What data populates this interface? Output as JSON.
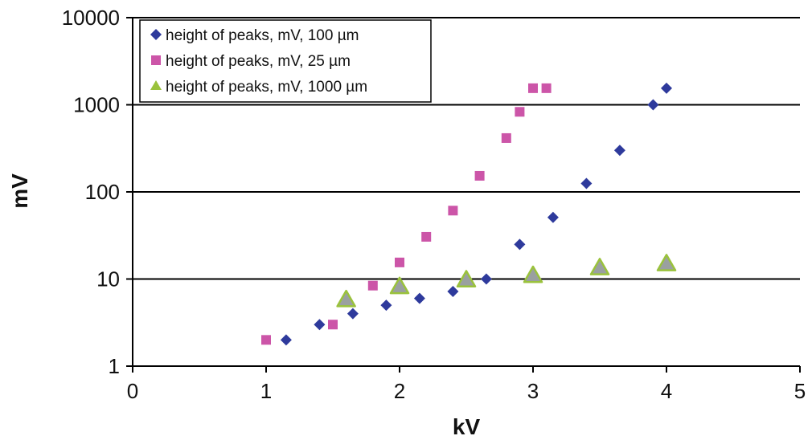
{
  "chart_data": {
    "type": "scatter",
    "title": "",
    "xlabel": "kV",
    "ylabel": "mV",
    "xlim": [
      0,
      5
    ],
    "ylim": [
      1,
      10000
    ],
    "yscale": "log",
    "grid": "horizontal",
    "legend_position": "top-left",
    "x_ticks": [
      "0",
      "1",
      "2",
      "3",
      "4",
      "5"
    ],
    "y_ticks": [
      "1",
      "10",
      "100",
      "1000",
      "10000"
    ],
    "series": [
      {
        "name": "height of peaks, mV, 100 µm",
        "marker": "diamond",
        "color": "#2e3a9c",
        "points": [
          {
            "x": 1.15,
            "y": 2
          },
          {
            "x": 1.4,
            "y": 3
          },
          {
            "x": 1.65,
            "y": 4
          },
          {
            "x": 1.9,
            "y": 5
          },
          {
            "x": 2.15,
            "y": 6
          },
          {
            "x": 2.4,
            "y": 7.2
          },
          {
            "x": 2.65,
            "y": 10
          },
          {
            "x": 2.9,
            "y": 25
          },
          {
            "x": 3.15,
            "y": 51
          },
          {
            "x": 3.4,
            "y": 125
          },
          {
            "x": 3.65,
            "y": 300
          },
          {
            "x": 3.9,
            "y": 1000
          },
          {
            "x": 4.0,
            "y": 1550
          }
        ]
      },
      {
        "name": "height of peaks, mV, 25 µm",
        "marker": "square",
        "color": "#cc55a8",
        "points": [
          {
            "x": 1.0,
            "y": 2
          },
          {
            "x": 1.5,
            "y": 3
          },
          {
            "x": 1.8,
            "y": 8.4
          },
          {
            "x": 2.0,
            "y": 15.5
          },
          {
            "x": 2.2,
            "y": 30.5
          },
          {
            "x": 2.4,
            "y": 61
          },
          {
            "x": 2.6,
            "y": 153
          },
          {
            "x": 2.8,
            "y": 415
          },
          {
            "x": 2.9,
            "y": 830
          },
          {
            "x": 3.0,
            "y": 1550
          },
          {
            "x": 3.1,
            "y": 1550
          }
        ]
      },
      {
        "name": "height of peaks, mV, 1000 µm",
        "marker": "triangle",
        "color": "#9aa0a0",
        "stroke": "#9ac23c",
        "points": [
          {
            "x": 1.6,
            "y": 5.8
          },
          {
            "x": 2.0,
            "y": 8.2
          },
          {
            "x": 2.5,
            "y": 9.8
          },
          {
            "x": 3.0,
            "y": 11
          },
          {
            "x": 3.5,
            "y": 13.5
          },
          {
            "x": 4.0,
            "y": 15
          }
        ]
      }
    ]
  }
}
